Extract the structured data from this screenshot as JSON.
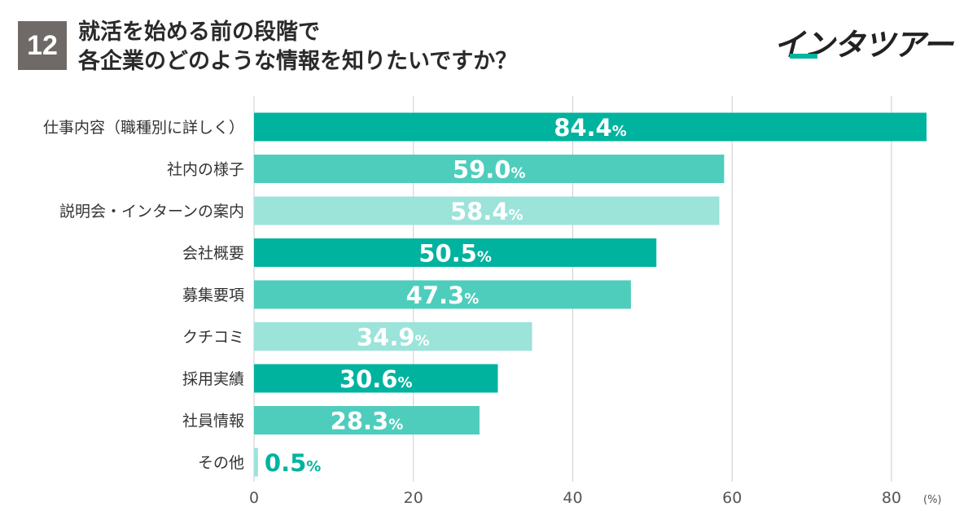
{
  "question": {
    "number": "12",
    "title_line1": "就活を始める前の段階で",
    "title_line2": "各企業のどのような情報を知りたいですか？"
  },
  "brand": {
    "logo_text": "インタツアー",
    "accent_color": "#00b39f"
  },
  "chart_data": {
    "type": "bar",
    "orientation": "horizontal",
    "categories": [
      "仕事内容（職種別に詳しく）",
      "社内の様子",
      "説明会・インターンの案内",
      "会社概要",
      "募集要項",
      "クチコミ",
      "採用実績",
      "社員情報",
      "その他"
    ],
    "values": [
      84.4,
      59.0,
      58.4,
      50.5,
      47.3,
      34.9,
      30.6,
      28.3,
      0.5
    ],
    "value_labels": [
      "84.4",
      "59.0",
      "58.4",
      "50.5",
      "47.3",
      "34.9",
      "30.6",
      "28.3",
      "0.5"
    ],
    "value_suffix": "%",
    "x_ticks": [
      "0",
      "20",
      "40",
      "60",
      "80"
    ],
    "x_tick_values": [
      0,
      20,
      40,
      60,
      80
    ],
    "x_unit": "(%)",
    "xlim": [
      0,
      84.4
    ],
    "grid": true,
    "bar_colors": [
      "#00b39f",
      "#4ecdbd",
      "#9ce3da"
    ],
    "other_label_color": "#00b39f"
  }
}
